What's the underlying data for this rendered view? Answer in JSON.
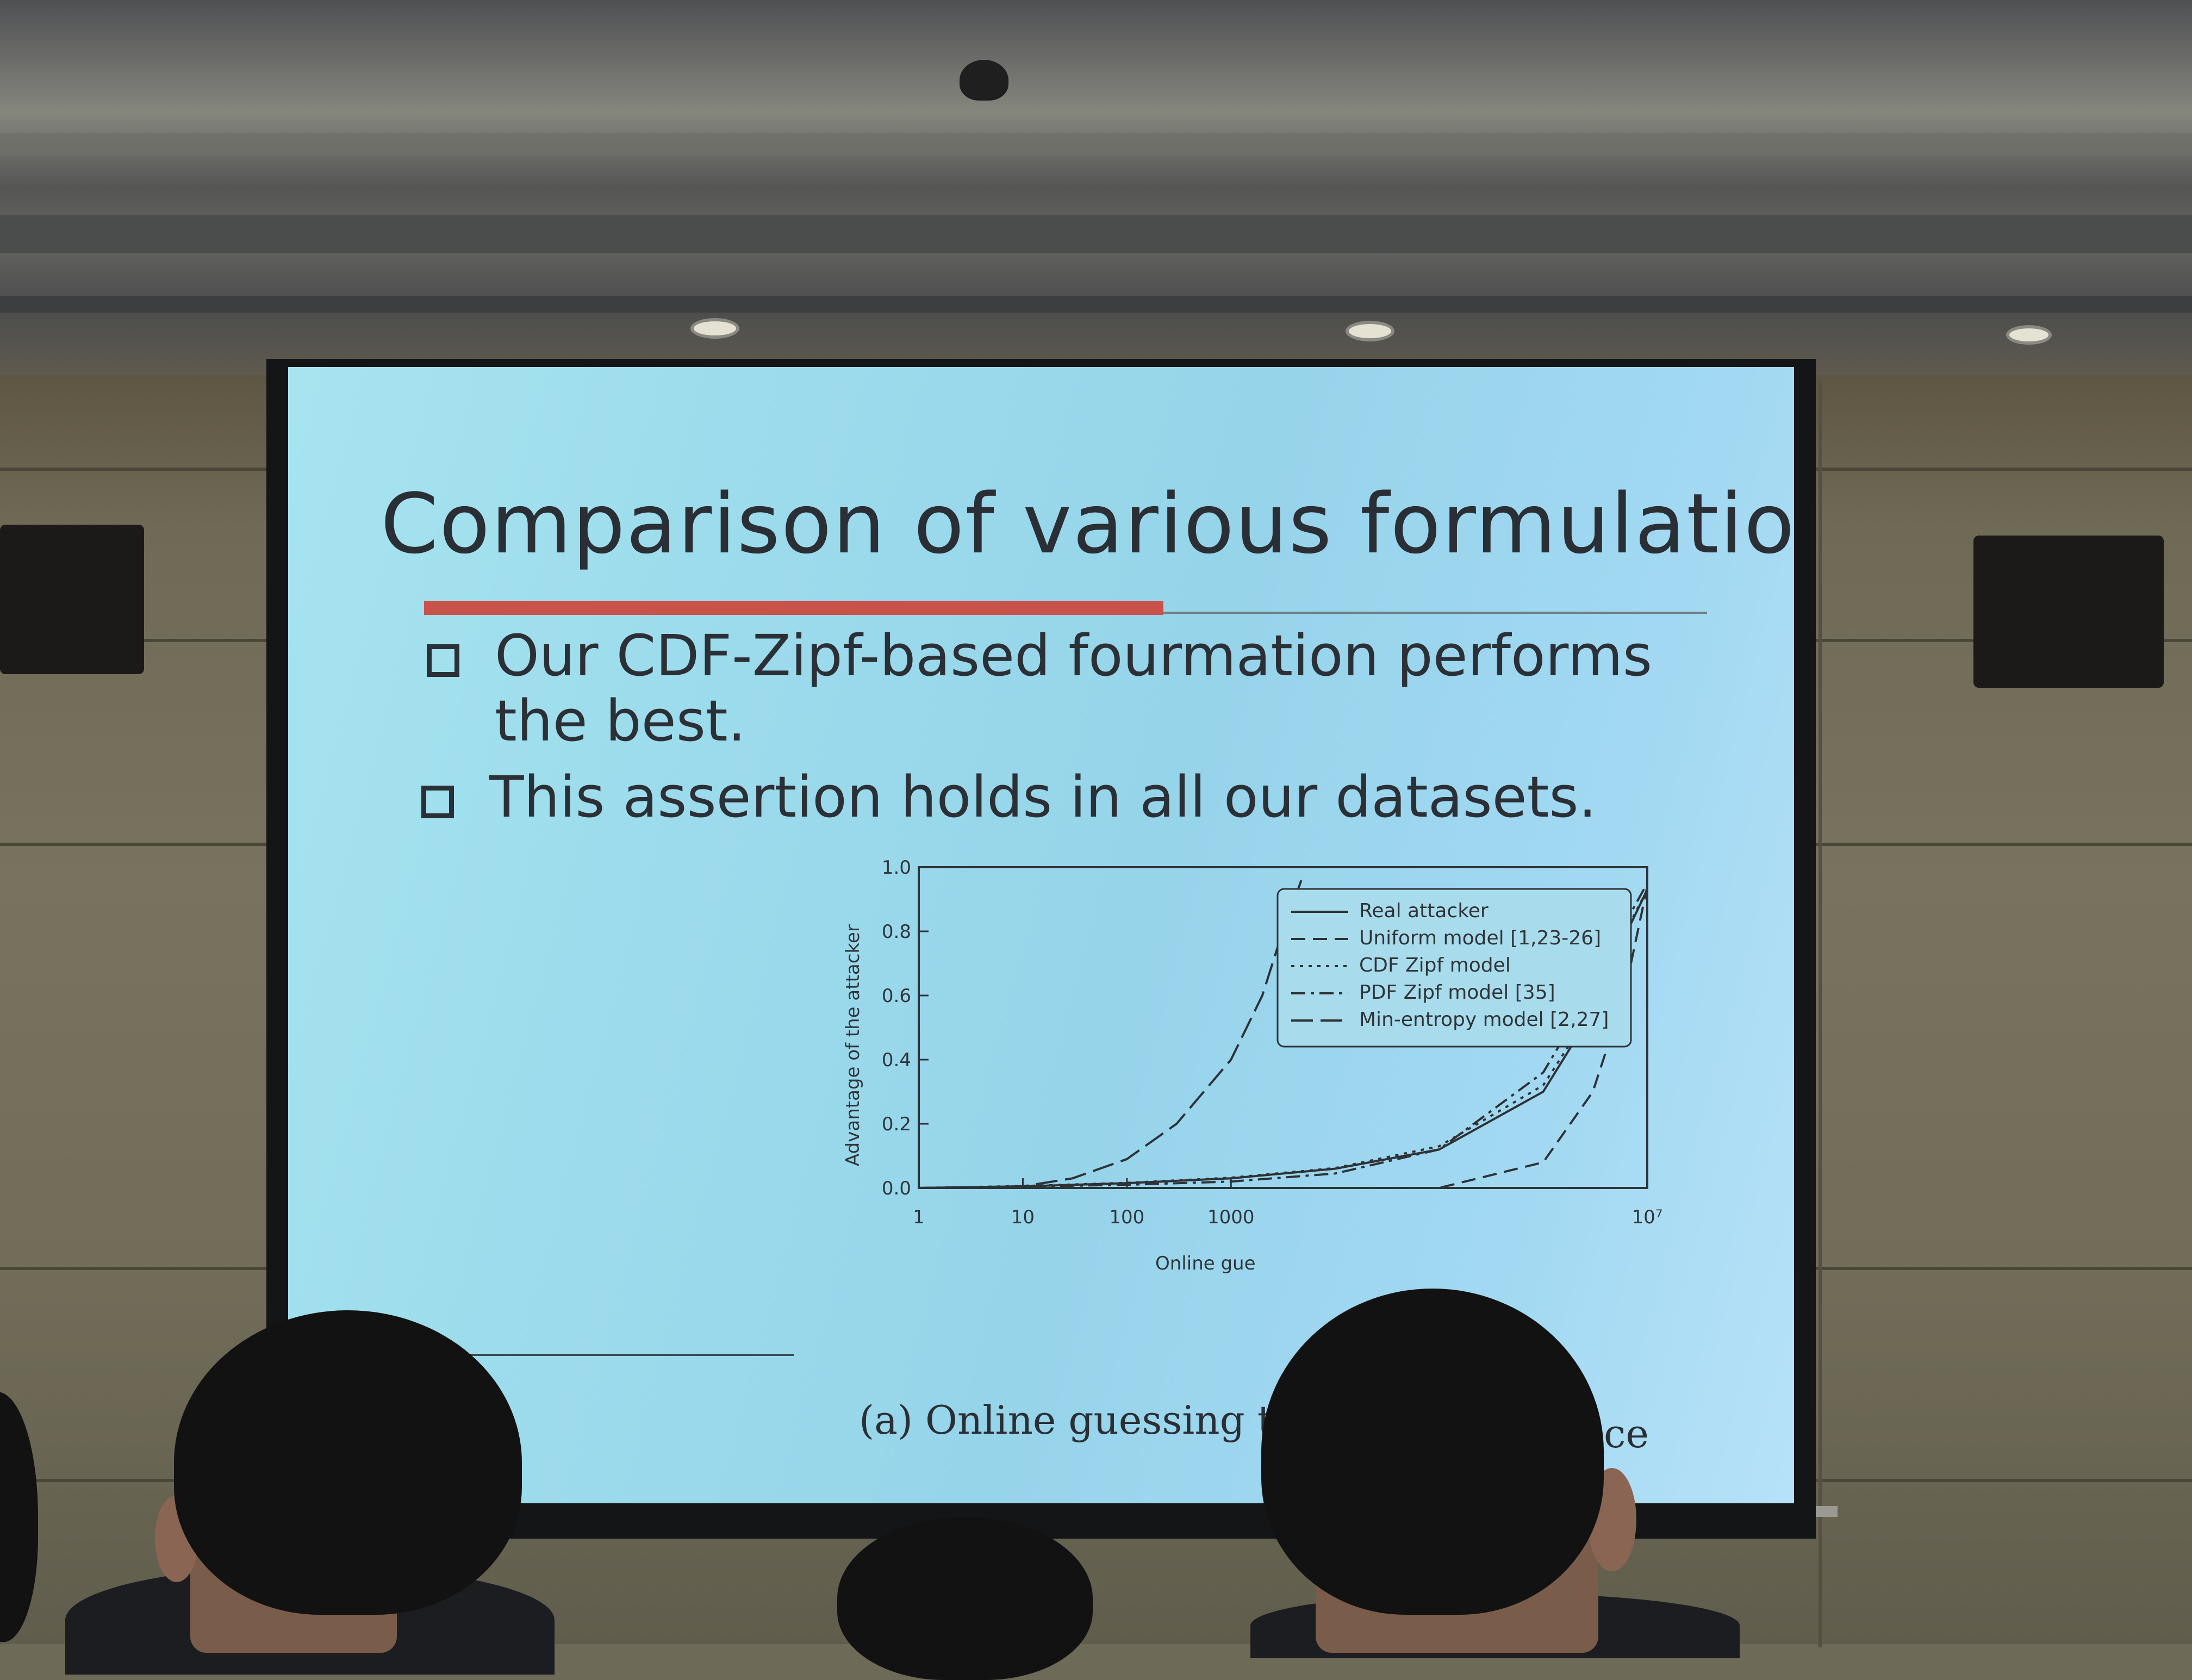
{
  "slide": {
    "title": "Comparison of various formulations",
    "bullets": [
      {
        "line1": "Our CDF-Zipf-based fourmation performs",
        "line2": "the best."
      },
      {
        "line1": "This assertion holds in all our datasets."
      }
    ],
    "caption_left": "(a) Online guessing th",
    "caption_right": "ce"
  },
  "chart_data": {
    "type": "line",
    "ylabel": "Advantage of the attacker",
    "y_ticks": [
      "0.0",
      "0.2",
      "0.4",
      "0.6",
      "0.8",
      "1.0"
    ],
    "x_ticks": [
      "1",
      "10",
      "100",
      "1000",
      "10⁷"
    ],
    "xlabel": "Online gue",
    "ylim": [
      0,
      1.0
    ],
    "x_scale": "log",
    "legend_position": "top-right",
    "legend": [
      {
        "label": "Real attacker",
        "style": "solid"
      },
      {
        "label": "Uniform model [1,23-26]",
        "style": "dashed"
      },
      {
        "label": "CDF Zipf model",
        "style": "dotted"
      },
      {
        "label": "PDF Zipf model [35]",
        "style": "dash-dot"
      },
      {
        "label": "Min-entropy model [2,27]",
        "style": "long-dash"
      }
    ],
    "series": [
      {
        "name": "Real attacker",
        "x": [
          1,
          10,
          100,
          1000,
          10000,
          100000,
          1000000,
          3000000,
          6000000,
          10000000
        ],
        "y": [
          0.0,
          0.005,
          0.015,
          0.03,
          0.06,
          0.12,
          0.3,
          0.55,
          0.78,
          0.93
        ]
      },
      {
        "name": "Uniform model [1,23-26]",
        "x": [
          1,
          10,
          100,
          1000,
          10000,
          100000,
          1000000,
          3000000,
          6000000,
          10000000
        ],
        "y": [
          0.0,
          0.0,
          0.0,
          0.0,
          0.0,
          0.0,
          0.08,
          0.3,
          0.6,
          0.94
        ]
      },
      {
        "name": "CDF Zipf model",
        "x": [
          1,
          10,
          100,
          1000,
          10000,
          100000,
          1000000,
          3000000,
          6000000,
          10000000
        ],
        "y": [
          0.0,
          0.006,
          0.016,
          0.032,
          0.062,
          0.13,
          0.32,
          0.56,
          0.79,
          0.93
        ]
      },
      {
        "name": "PDF Zipf model [35]",
        "x": [
          1,
          10,
          100,
          1000,
          10000,
          100000,
          1000000,
          3000000,
          6000000,
          10000000
        ],
        "y": [
          0.0,
          0.004,
          0.01,
          0.02,
          0.045,
          0.12,
          0.36,
          0.62,
          0.82,
          0.95
        ]
      },
      {
        "name": "Min-entropy model [2,27]",
        "x": [
          1,
          10,
          30,
          100,
          300,
          1000,
          2000,
          3000,
          5000
        ],
        "y": [
          0.0,
          0.005,
          0.03,
          0.09,
          0.2,
          0.4,
          0.6,
          0.78,
          0.98
        ]
      }
    ]
  }
}
